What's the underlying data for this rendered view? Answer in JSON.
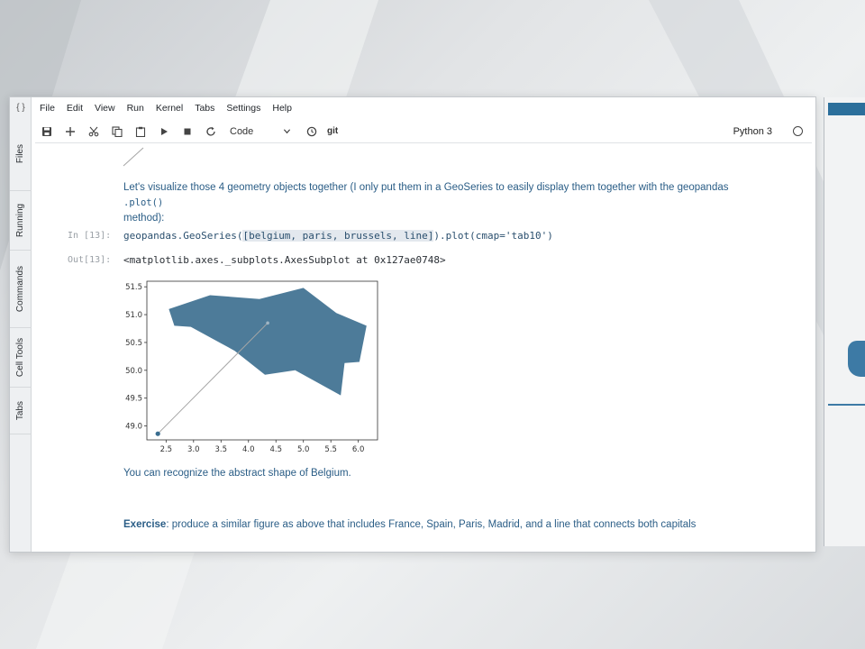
{
  "menubar": {
    "items": [
      "File",
      "Edit",
      "View",
      "Run",
      "Kernel",
      "Tabs",
      "Settings",
      "Help"
    ]
  },
  "sidebar": {
    "top_glyph": "{ }",
    "tabs": [
      "Files",
      "Running",
      "Commands",
      "Cell Tools",
      "Tabs"
    ]
  },
  "toolbar": {
    "cell_type": "Code",
    "git_label": "git",
    "kernel_name": "Python 3",
    "icons": [
      "save-icon",
      "add-icon",
      "cut-icon",
      "copy-icon",
      "paste-icon",
      "run-icon",
      "stop-icon",
      "restart-icon",
      "clock-icon"
    ]
  },
  "cells": {
    "intro_text_line1": "Let's visualize those 4 geometry objects together (I only put them in a GeoSeries to easily display them together with the geopandas",
    "intro_text_code": ".plot()",
    "intro_text_line2": "method):",
    "in_prompt": "In [13]:",
    "code_prefix": "geopandas.GeoSeries(",
    "code_highlight": "[belgium, paris, brussels, line]",
    "code_suffix": ").plot(cmap='tab10')",
    "out_prompt": "Out[13]:",
    "output_text": "<matplotlib.axes._subplots.AxesSubplot at 0x127ae0748>",
    "after_plot_text": "You can recognize the abstract shape of Belgium.",
    "exercise_bold": "Exercise",
    "exercise_text": ": produce a similar figure as above that includes France, Spain, Paris, Madrid, and a line that connects both capitals"
  },
  "chart_data": {
    "type": "geo",
    "xlim": [
      2.15,
      6.35
    ],
    "ylim": [
      48.75,
      51.6
    ],
    "xticks": [
      2.5,
      3.0,
      3.5,
      4.0,
      4.5,
      5.0,
      5.5,
      6.0
    ],
    "xtick_labels": [
      "2.5",
      "3.0",
      "3.5",
      "4.0",
      "4.5",
      "5.0",
      "5.5",
      "6.0"
    ],
    "yticks": [
      49.0,
      49.5,
      50.0,
      50.5,
      51.0,
      51.5
    ],
    "ytick_labels": [
      "49.0",
      "49.5",
      "50.0",
      "50.5",
      "51.0",
      "51.5"
    ],
    "polygon": [
      [
        2.55,
        51.1
      ],
      [
        3.3,
        51.35
      ],
      [
        4.2,
        51.28
      ],
      [
        5.0,
        51.48
      ],
      [
        5.6,
        51.03
      ],
      [
        6.15,
        50.8
      ],
      [
        6.02,
        50.15
      ],
      [
        5.75,
        50.13
      ],
      [
        5.68,
        49.55
      ],
      [
        4.85,
        50.0
      ],
      [
        4.3,
        49.92
      ],
      [
        3.75,
        50.35
      ],
      [
        2.95,
        50.78
      ],
      [
        2.65,
        50.8
      ]
    ],
    "polygon_color": "#4d7b99",
    "line": [
      [
        2.35,
        48.86
      ],
      [
        4.35,
        50.85
      ]
    ],
    "line_color": "#a6a6a6",
    "paris_point": [
      2.35,
      48.86
    ],
    "brussels_point": [
      4.35,
      50.85
    ],
    "point_color": "#3a6d90",
    "grid": false
  }
}
